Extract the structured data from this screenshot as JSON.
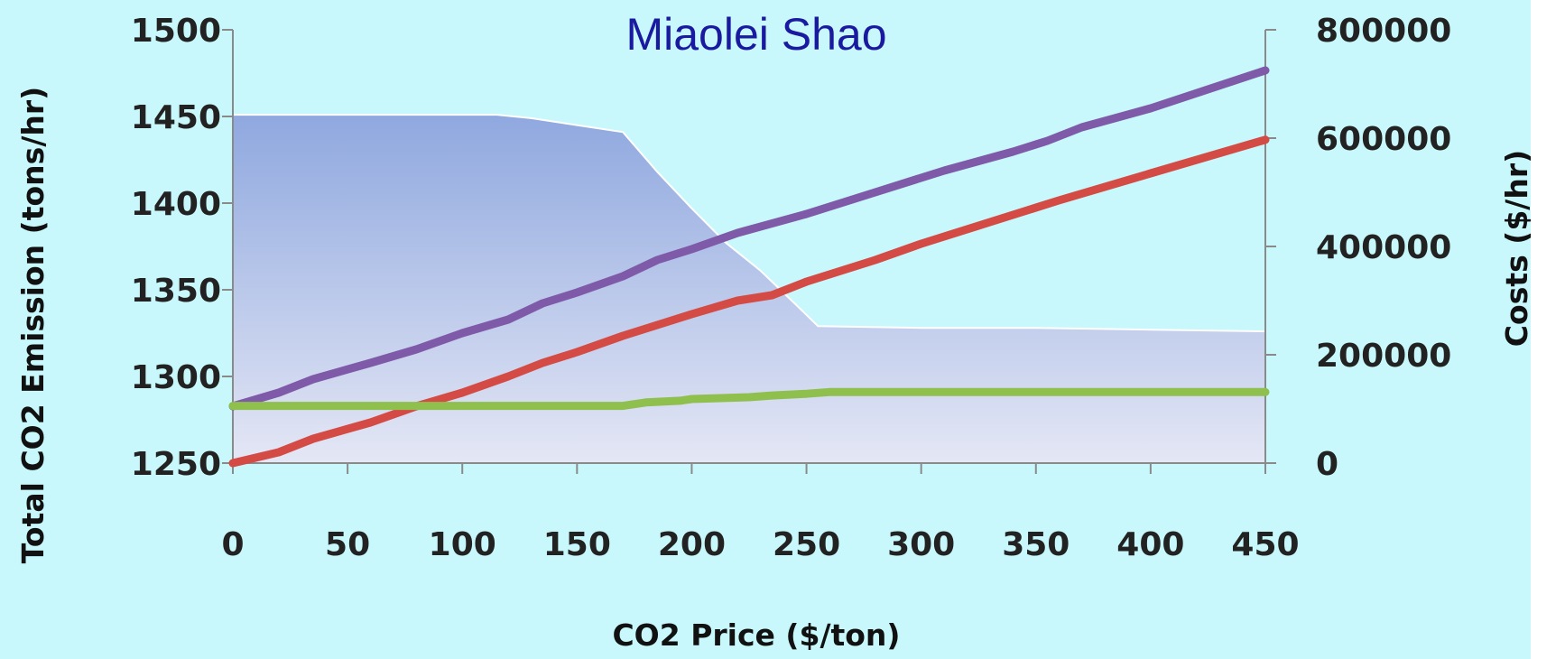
{
  "chart_data": {
    "type": "line",
    "title": "Miaolei Shao",
    "xlabel": "CO2 Price ($/ton)",
    "ylabel": "Total CO2 Emission  (tons/hr)",
    "y2label": "Costs ($/hr)",
    "xlim": [
      0,
      450
    ],
    "ylim": [
      1250,
      1500
    ],
    "y2lim": [
      0,
      800000
    ],
    "x_ticks": [
      "0",
      "50",
      "100",
      "150",
      "200",
      "250",
      "300",
      "350",
      "400",
      "450"
    ],
    "y_ticks": [
      "1250",
      "1300",
      "1350",
      "1400",
      "1450",
      "1500"
    ],
    "y2_ticks": [
      "0",
      "200000",
      "400000",
      "600000",
      "800000"
    ],
    "grid": false,
    "legend": "none",
    "area": {
      "axis": "left",
      "color": "#9fb4e6",
      "points": [
        [
          0,
          1451
        ],
        [
          50,
          1451
        ],
        [
          100,
          1451
        ],
        [
          115,
          1451
        ],
        [
          130,
          1449
        ],
        [
          150,
          1445
        ],
        [
          170,
          1441
        ],
        [
          185,
          1418
        ],
        [
          200,
          1397
        ],
        [
          215,
          1377
        ],
        [
          230,
          1361
        ],
        [
          245,
          1342
        ],
        [
          255,
          1329
        ],
        [
          300,
          1328
        ],
        [
          350,
          1328
        ],
        [
          400,
          1327
        ],
        [
          450,
          1326
        ]
      ]
    },
    "series": [
      {
        "axis": "right",
        "color": "#7e5aa8",
        "points": [
          [
            0,
            105000
          ],
          [
            20,
            130000
          ],
          [
            35,
            155000
          ],
          [
            60,
            185000
          ],
          [
            80,
            210000
          ],
          [
            100,
            240000
          ],
          [
            120,
            265000
          ],
          [
            135,
            295000
          ],
          [
            150,
            315000
          ],
          [
            170,
            345000
          ],
          [
            185,
            375000
          ],
          [
            200,
            395000
          ],
          [
            220,
            425000
          ],
          [
            250,
            460000
          ],
          [
            280,
            500000
          ],
          [
            310,
            540000
          ],
          [
            340,
            575000
          ],
          [
            355,
            595000
          ],
          [
            370,
            620000
          ],
          [
            400,
            655000
          ],
          [
            425,
            690000
          ],
          [
            450,
            725000
          ]
        ]
      },
      {
        "axis": "right",
        "color": "#d44a44",
        "points": [
          [
            0,
            0
          ],
          [
            20,
            20000
          ],
          [
            35,
            45000
          ],
          [
            60,
            75000
          ],
          [
            80,
            105000
          ],
          [
            100,
            130000
          ],
          [
            120,
            160000
          ],
          [
            135,
            185000
          ],
          [
            150,
            205000
          ],
          [
            170,
            235000
          ],
          [
            185,
            255000
          ],
          [
            200,
            275000
          ],
          [
            220,
            300000
          ],
          [
            235,
            310000
          ],
          [
            250,
            335000
          ],
          [
            280,
            375000
          ],
          [
            300,
            405000
          ],
          [
            330,
            445000
          ],
          [
            360,
            485000
          ],
          [
            400,
            535000
          ],
          [
            450,
            597000
          ]
        ]
      },
      {
        "axis": "left",
        "color": "#8fc04e",
        "points": [
          [
            0,
            1283
          ],
          [
            50,
            1283
          ],
          [
            100,
            1283
          ],
          [
            150,
            1283
          ],
          [
            170,
            1283
          ],
          [
            180,
            1285
          ],
          [
            195,
            1286
          ],
          [
            200,
            1287
          ],
          [
            225,
            1288
          ],
          [
            235,
            1289
          ],
          [
            250,
            1290
          ],
          [
            260,
            1291
          ],
          [
            300,
            1291
          ],
          [
            350,
            1291
          ],
          [
            400,
            1291
          ],
          [
            450,
            1291
          ]
        ]
      }
    ]
  }
}
